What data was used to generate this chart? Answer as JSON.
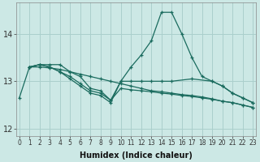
{
  "xlabel": "Humidex (Indice chaleur)",
  "ylabel": "",
  "bg_color": "#cce8e5",
  "line_color": "#1a6b5e",
  "grid_color": "#aacfcc",
  "ylim": [
    11.85,
    14.65
  ],
  "xlim": [
    -0.3,
    23.3
  ],
  "yticks": [
    12,
    13,
    14
  ],
  "xticks": [
    0,
    1,
    2,
    3,
    4,
    5,
    6,
    7,
    8,
    9,
    10,
    11,
    12,
    13,
    14,
    15,
    16,
    17,
    18,
    19,
    20,
    21,
    22,
    23
  ],
  "series": [
    {
      "x": [
        0,
        1,
        2,
        3,
        4,
        5,
        6,
        7,
        8,
        9,
        10,
        11,
        12,
        13,
        14,
        15,
        16,
        17,
        18,
        19,
        20,
        21,
        22,
        23
      ],
      "y": [
        12.65,
        13.3,
        13.35,
        13.35,
        13.35,
        13.2,
        13.1,
        12.85,
        12.8,
        12.6,
        13.0,
        13.3,
        13.55,
        13.85,
        14.45,
        14.45,
        14.0,
        13.5,
        13.1,
        13.0,
        12.9,
        12.75,
        12.65,
        12.55
      ]
    },
    {
      "x": [
        1,
        2,
        3,
        4,
        5,
        6,
        7,
        8,
        9,
        10,
        11,
        12,
        13,
        14,
        15,
        16,
        17,
        18,
        19,
        20,
        21,
        22,
        23
      ],
      "y": [
        13.3,
        13.3,
        13.28,
        13.25,
        13.2,
        13.15,
        13.1,
        13.05,
        13.0,
        12.95,
        12.9,
        12.85,
        12.8,
        12.78,
        12.75,
        12.72,
        12.7,
        12.67,
        12.63,
        12.58,
        12.55,
        12.5,
        12.45
      ]
    },
    {
      "x": [
        1,
        2,
        3,
        4,
        5,
        6,
        7,
        8,
        9,
        10,
        11,
        12,
        13,
        14,
        15,
        16,
        17,
        18,
        19,
        20,
        21,
        22,
        23
      ],
      "y": [
        13.3,
        13.35,
        13.3,
        13.2,
        13.1,
        12.95,
        12.8,
        12.75,
        12.6,
        12.85,
        12.82,
        12.8,
        12.78,
        12.75,
        12.73,
        12.7,
        12.68,
        12.65,
        12.62,
        12.58,
        12.55,
        12.5,
        12.45
      ]
    },
    {
      "x": [
        1,
        2,
        3,
        4,
        5,
        6,
        7,
        8,
        9,
        10,
        11,
        12,
        13,
        14,
        15,
        17,
        19,
        20,
        21,
        22,
        23
      ],
      "y": [
        13.3,
        13.35,
        13.3,
        13.2,
        13.05,
        12.9,
        12.75,
        12.7,
        12.55,
        13.0,
        13.0,
        13.0,
        13.0,
        13.0,
        13.0,
        13.05,
        13.0,
        12.9,
        12.75,
        12.65,
        12.55
      ]
    }
  ]
}
